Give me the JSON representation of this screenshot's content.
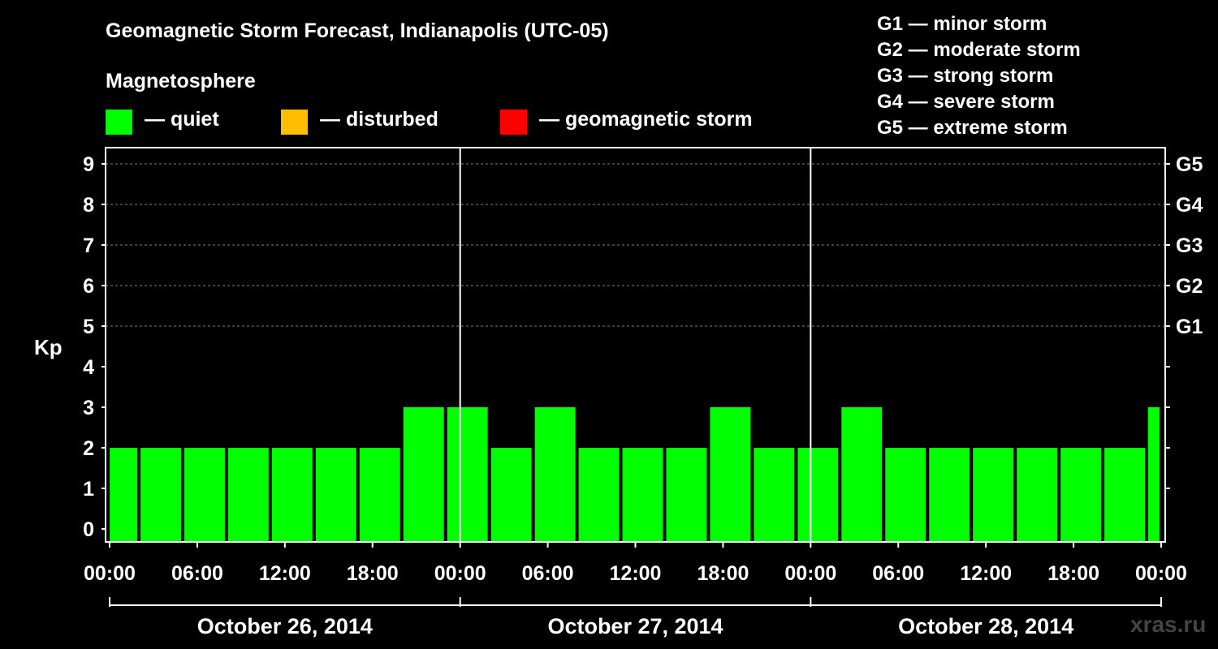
{
  "title": "Geomagnetic Storm Forecast, Indianapolis (UTC-05)",
  "magnetosphere_label": "Magnetosphere",
  "legend": [
    {
      "label": "— quiet",
      "color": "#00ff00"
    },
    {
      "label": "— disturbed",
      "color": "#ffbf00"
    },
    {
      "label": "— geomagnetic storm",
      "color": "#ff0000"
    }
  ],
  "storm_scale": [
    "G1 — minor storm",
    "G2 — moderate storm",
    "G3 — strong storm",
    "G4 — severe storm",
    "G5 — extreme storm"
  ],
  "watermark": "xras.ru",
  "chart_data": {
    "type": "bar",
    "title": "Geomagnetic Storm Forecast, Indianapolis (UTC-05)",
    "ylabel": "Kp",
    "ylim": [
      0,
      9
    ],
    "yticks": [
      "0",
      "1",
      "2",
      "3",
      "4",
      "5",
      "6",
      "7",
      "8",
      "9"
    ],
    "right_ticks": [
      {
        "kp": 5,
        "label": "G1"
      },
      {
        "kp": 6,
        "label": "G2"
      },
      {
        "kp": 7,
        "label": "G3"
      },
      {
        "kp": 8,
        "label": "G4"
      },
      {
        "kp": 9,
        "label": "G5"
      }
    ],
    "xtick_labels": [
      "00:00",
      "06:00",
      "12:00",
      "18:00",
      "00:00",
      "06:00",
      "12:00",
      "18:00",
      "00:00",
      "06:00",
      "12:00",
      "18:00",
      "00:00"
    ],
    "days": [
      "October 26, 2014",
      "October 27, 2014",
      "October 28, 2014"
    ],
    "bar_color": "#00ff00",
    "bars": [
      {
        "start_hour": 0,
        "end_hour": 2,
        "kp": 2
      },
      {
        "start_hour": 2,
        "end_hour": 5,
        "kp": 2
      },
      {
        "start_hour": 5,
        "end_hour": 8,
        "kp": 2
      },
      {
        "start_hour": 8,
        "end_hour": 11,
        "kp": 2
      },
      {
        "start_hour": 11,
        "end_hour": 14,
        "kp": 2
      },
      {
        "start_hour": 14,
        "end_hour": 17,
        "kp": 2
      },
      {
        "start_hour": 17,
        "end_hour": 20,
        "kp": 2
      },
      {
        "start_hour": 20,
        "end_hour": 23,
        "kp": 3
      },
      {
        "start_hour": 23,
        "end_hour": 26,
        "kp": 3
      },
      {
        "start_hour": 26,
        "end_hour": 29,
        "kp": 2
      },
      {
        "start_hour": 29,
        "end_hour": 32,
        "kp": 3
      },
      {
        "start_hour": 32,
        "end_hour": 35,
        "kp": 2
      },
      {
        "start_hour": 35,
        "end_hour": 38,
        "kp": 2
      },
      {
        "start_hour": 38,
        "end_hour": 41,
        "kp": 2
      },
      {
        "start_hour": 41,
        "end_hour": 44,
        "kp": 3
      },
      {
        "start_hour": 44,
        "end_hour": 47,
        "kp": 2
      },
      {
        "start_hour": 47,
        "end_hour": 50,
        "kp": 2
      },
      {
        "start_hour": 50,
        "end_hour": 53,
        "kp": 3
      },
      {
        "start_hour": 53,
        "end_hour": 56,
        "kp": 2
      },
      {
        "start_hour": 56,
        "end_hour": 59,
        "kp": 2
      },
      {
        "start_hour": 59,
        "end_hour": 62,
        "kp": 2
      },
      {
        "start_hour": 62,
        "end_hour": 65,
        "kp": 2
      },
      {
        "start_hour": 65,
        "end_hour": 68,
        "kp": 2
      },
      {
        "start_hour": 68,
        "end_hour": 71,
        "kp": 2
      },
      {
        "start_hour": 71,
        "end_hour": 72,
        "kp": 3
      }
    ],
    "grid": "dashed at Kp 5-9"
  }
}
